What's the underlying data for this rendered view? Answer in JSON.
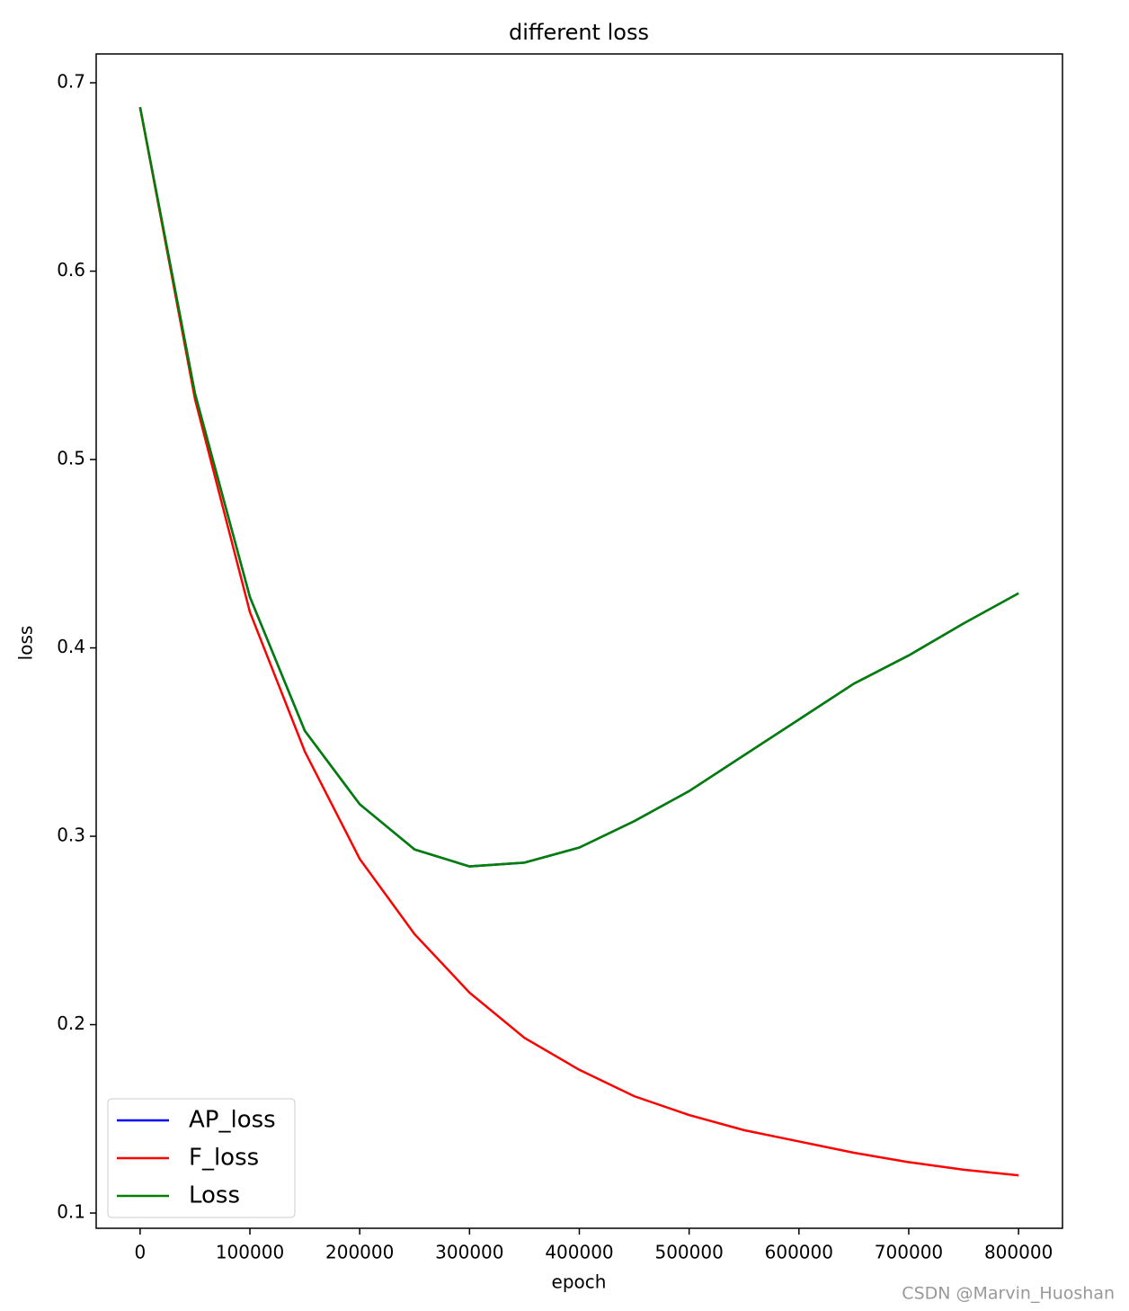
{
  "chart_data": {
    "type": "line",
    "title": "different loss",
    "x_label": "epoch",
    "y_label": "loss",
    "x": [
      0,
      50000,
      100000,
      150000,
      200000,
      250000,
      300000,
      350000,
      400000,
      450000,
      500000,
      550000,
      600000,
      650000,
      700000,
      750000,
      800000
    ],
    "series": [
      {
        "name": "AP_loss",
        "color": "#0000ff",
        "values": [
          0.687,
          0.535,
          0.427,
          0.356,
          0.317,
          0.293,
          0.284,
          0.286,
          0.294,
          0.308,
          0.324,
          0.343,
          0.362,
          0.381,
          0.396,
          0.413,
          0.429
        ]
      },
      {
        "name": "F_loss",
        "color": "#ff0000",
        "values": [
          0.687,
          0.532,
          0.419,
          0.345,
          0.288,
          0.248,
          0.217,
          0.193,
          0.176,
          0.162,
          0.152,
          0.144,
          0.138,
          0.132,
          0.127,
          0.123,
          0.12
        ]
      },
      {
        "name": "Loss",
        "color": "#008000",
        "values": [
          0.687,
          0.535,
          0.427,
          0.356,
          0.317,
          0.293,
          0.284,
          0.286,
          0.294,
          0.308,
          0.324,
          0.343,
          0.362,
          0.381,
          0.396,
          0.413,
          0.429
        ]
      }
    ],
    "xlim": [
      -40000,
      840000
    ],
    "ylim": [
      0.0919,
      0.7153
    ],
    "xticks": [
      0,
      100000,
      200000,
      300000,
      400000,
      500000,
      600000,
      700000,
      800000
    ],
    "yticks": [
      0.1,
      0.2,
      0.3,
      0.4,
      0.5,
      0.6,
      0.7
    ],
    "grid": false,
    "legend": "lower left"
  },
  "watermark": "CSDN @Marvin_Huoshan"
}
